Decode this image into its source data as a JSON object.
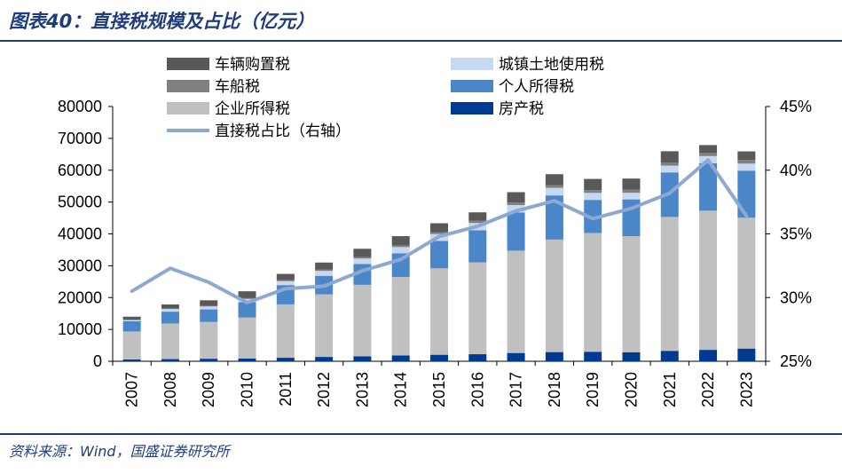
{
  "header": {
    "title": "图表40：直接税规模及占比（亿元）"
  },
  "footer": {
    "source": "资料来源：Wind，国盛证券研究所"
  },
  "chart_data": {
    "type": "bar",
    "stacked": true,
    "categories": [
      "2007",
      "2008",
      "2009",
      "2010",
      "2011",
      "2012",
      "2013",
      "2014",
      "2015",
      "2016",
      "2017",
      "2018",
      "2019",
      "2020",
      "2021",
      "2022",
      "2023"
    ],
    "series": [
      {
        "name": "房产税",
        "color": "#003b91",
        "values": [
          575,
          680,
          800,
          890,
          1100,
          1370,
          1580,
          1850,
          2050,
          2220,
          2600,
          2890,
          2990,
          2840,
          3280,
          3590,
          3990
        ]
      },
      {
        "name": "企业所得税",
        "color": "#c0c0c0",
        "values": [
          8780,
          11180,
          11540,
          12840,
          16770,
          19650,
          22430,
          24640,
          27130,
          28850,
          32120,
          35320,
          37300,
          36430,
          42040,
          43700,
          41100
        ]
      },
      {
        "name": "个人所得税",
        "color": "#4a86c8",
        "values": [
          3190,
          3720,
          3950,
          4840,
          6050,
          5820,
          6530,
          7380,
          8620,
          10090,
          11970,
          13870,
          10390,
          11570,
          13990,
          14920,
          14780
        ]
      },
      {
        "name": "城镇土地使用税",
        "color": "#c6d9f1",
        "values": [
          390,
          820,
          920,
          1000,
          1220,
          1540,
          1720,
          1990,
          2140,
          2260,
          2360,
          2390,
          2200,
          2060,
          2130,
          2230,
          2210
        ]
      },
      {
        "name": "车船税",
        "color": "#7f7f7f",
        "values": [
          70,
          140,
          190,
          240,
          300,
          390,
          470,
          540,
          610,
          680,
          770,
          830,
          880,
          950,
          1000,
          1050,
          1150
        ]
      },
      {
        "name": "车辆购置税",
        "color": "#595959",
        "values": [
          1000,
          1290,
          1750,
          2170,
          2000,
          2230,
          2600,
          2890,
          2790,
          2670,
          3280,
          3450,
          3500,
          3530,
          3520,
          2400,
          2680
        ]
      }
    ],
    "line": {
      "name": "直接税占比（右轴）",
      "color": "#8ea9d1",
      "axis": "right",
      "values": [
        30.5,
        32.3,
        31.2,
        29.6,
        30.7,
        30.9,
        32.1,
        33.0,
        34.8,
        35.6,
        36.8,
        37.6,
        36.2,
        37.0,
        38.2,
        40.8,
        36.4
      ]
    },
    "ylim_left": [
      0,
      80000
    ],
    "yticks_left": [
      "0",
      "10000",
      "20000",
      "30000",
      "40000",
      "50000",
      "60000",
      "70000",
      "80000"
    ],
    "ylim_right": [
      25,
      45
    ],
    "yticks_right": [
      "25%",
      "30%",
      "35%",
      "40%",
      "45%"
    ],
    "legend": {
      "left": [
        "车辆购置税",
        "车船税",
        "企业所得税",
        "直接税占比（右轴）"
      ],
      "right": [
        "城镇土地使用税",
        "个人所得税",
        "房产税"
      ]
    },
    "legend_position": "top",
    "grid": false
  }
}
